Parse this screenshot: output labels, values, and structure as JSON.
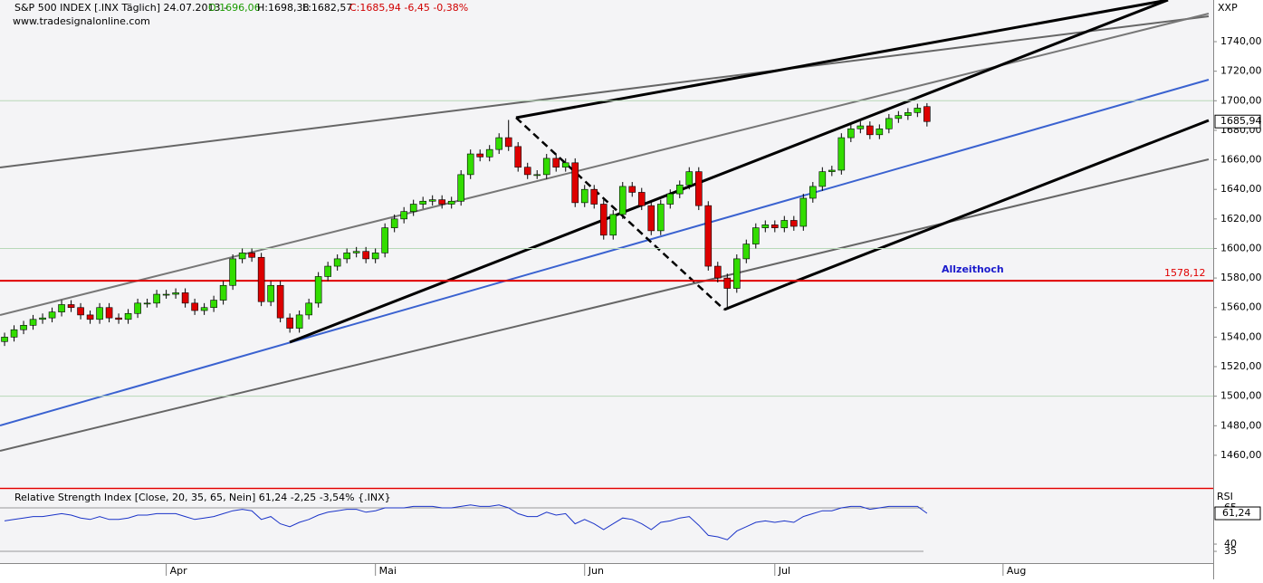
{
  "chart_data": {
    "type": "candlestick",
    "title": "S&P 500 INDEX [.INX  Täglich] 24.07.2013 -",
    "open_text": "O:1696,06",
    "high_text": "H:1698,38",
    "low_text": "L:1682,57",
    "close_text": "C:1685,94 -6,45 -0,38%",
    "website": "www.tradesignalonline.com",
    "symbol": "XXP",
    "up_color": "#33dd00",
    "down_color": "#dd0000",
    "open": [
      1537,
      1540,
      1545,
      1548,
      1552,
      1553,
      1557,
      1562,
      1560,
      1555,
      1552,
      1560,
      1553,
      1552,
      1556,
      1563,
      1563,
      1569,
      1569,
      1570,
      1563,
      1558,
      1560,
      1565,
      1575,
      1593,
      1597,
      1594,
      1564,
      1575,
      1553,
      1546,
      1555,
      1563,
      1581,
      1588,
      1593,
      1597,
      1598,
      1593,
      1597,
      1614,
      1620,
      1625,
      1630,
      1632,
      1633,
      1630,
      1632,
      1650,
      1664,
      1662,
      1667,
      1675,
      1669,
      1655,
      1650,
      1650,
      1661,
      1655,
      1658,
      1631,
      1640,
      1630,
      1609,
      1623,
      1642,
      1638,
      1629,
      1612,
      1630,
      1637,
      1643,
      1652,
      1629,
      1588,
      1580,
      1573,
      1593,
      1603,
      1614,
      1616,
      1614,
      1619,
      1615,
      1634,
      1642,
      1652,
      1653,
      1675,
      1681,
      1683,
      1677,
      1681,
      1688,
      1690,
      1692,
      1696.06
    ],
    "high": [
      1543,
      1548,
      1551,
      1555,
      1556,
      1560,
      1565,
      1565,
      1563,
      1558,
      1563,
      1563,
      1556,
      1559,
      1566,
      1566,
      1572,
      1572,
      1573,
      1573,
      1566,
      1563,
      1568,
      1578,
      1596,
      1600,
      1600,
      1597,
      1578,
      1578,
      1556,
      1558,
      1566,
      1584,
      1591,
      1596,
      1600,
      1601,
      1601,
      1600,
      1617,
      1623,
      1628,
      1633,
      1635,
      1636,
      1636,
      1635,
      1653,
      1667,
      1667,
      1670,
      1678,
      1687,
      1672,
      1658,
      1653,
      1664,
      1664,
      1661,
      1661,
      1643,
      1643,
      1633,
      1626,
      1645,
      1645,
      1641,
      1632,
      1633,
      1640,
      1646,
      1655,
      1655,
      1632,
      1591,
      1583,
      1596,
      1606,
      1617,
      1619,
      1619,
      1622,
      1622,
      1637,
      1645,
      1655,
      1656,
      1678,
      1684,
      1686,
      1686,
      1684,
      1691,
      1693,
      1695,
      1698,
      1698.38
    ],
    "low": [
      1534,
      1537,
      1542,
      1545,
      1549,
      1550,
      1554,
      1557,
      1552,
      1549,
      1549,
      1550,
      1549,
      1549,
      1553,
      1560,
      1560,
      1566,
      1566,
      1560,
      1555,
      1555,
      1557,
      1562,
      1572,
      1590,
      1591,
      1561,
      1561,
      1550,
      1543,
      1543,
      1552,
      1560,
      1578,
      1585,
      1590,
      1594,
      1590,
      1590,
      1594,
      1611,
      1617,
      1622,
      1627,
      1629,
      1627,
      1627,
      1629,
      1647,
      1659,
      1659,
      1664,
      1666,
      1652,
      1647,
      1647,
      1647,
      1652,
      1652,
      1628,
      1628,
      1627,
      1606,
      1606,
      1620,
      1635,
      1626,
      1609,
      1609,
      1627,
      1634,
      1640,
      1626,
      1585,
      1577,
      1560,
      1570,
      1590,
      1600,
      1611,
      1611,
      1611,
      1612,
      1612,
      1631,
      1639,
      1649,
      1650,
      1672,
      1678,
      1674,
      1674,
      1678,
      1685,
      1687,
      1689,
      1682.57
    ],
    "close": [
      1540,
      1545,
      1548,
      1552,
      1553,
      1557,
      1562,
      1560,
      1555,
      1552,
      1560,
      1553,
      1552,
      1556,
      1563,
      1563,
      1569,
      1569,
      1570,
      1563,
      1558,
      1560,
      1565,
      1575,
      1593,
      1597,
      1594,
      1564,
      1575,
      1553,
      1546,
      1555,
      1563,
      1581,
      1588,
      1593,
      1597,
      1598,
      1593,
      1597,
      1614,
      1620,
      1625,
      1630,
      1632,
      1633,
      1630,
      1632,
      1650,
      1664,
      1662,
      1667,
      1675,
      1669,
      1655,
      1650,
      1650,
      1661,
      1655,
      1658,
      1631,
      1640,
      1630,
      1609,
      1623,
      1642,
      1638,
      1629,
      1612,
      1630,
      1637,
      1643,
      1652,
      1629,
      1588,
      1580,
      1573,
      1593,
      1603,
      1614,
      1616,
      1614,
      1619,
      1615,
      1634,
      1642,
      1652,
      1653,
      1675,
      1681,
      1683,
      1677,
      1681,
      1688,
      1690,
      1692,
      1695,
      1685.94
    ],
    "xlim": [
      -0.48,
      127.1
    ],
    "xticks": [
      {
        "value": 17,
        "label": "Apr"
      },
      {
        "value": 39,
        "label": "Mai"
      },
      {
        "value": 61,
        "label": "Jun"
      },
      {
        "value": 81,
        "label": "Jul"
      },
      {
        "value": 105,
        "label": "Aug"
      }
    ],
    "ylim": [
      1438.5,
      1768.2
    ],
    "yticks": [
      {
        "value": 1460,
        "label": "1460,00"
      },
      {
        "value": 1480,
        "label": "1480,00"
      },
      {
        "value": 1500,
        "label": "1500,00"
      },
      {
        "value": 1520,
        "label": "1520,00"
      },
      {
        "value": 1540,
        "label": "1540,00"
      },
      {
        "value": 1560,
        "label": "1560,00"
      },
      {
        "value": 1580,
        "label": "1580,00"
      },
      {
        "value": 1600,
        "label": "1600,00"
      },
      {
        "value": 1620,
        "label": "1620,00"
      },
      {
        "value": 1640,
        "label": "1640,00"
      },
      {
        "value": 1660,
        "label": "1660,00"
      },
      {
        "value": 1680,
        "label": "1680,00"
      },
      {
        "value": 1700,
        "label": "1700,00"
      },
      {
        "value": 1720,
        "label": "1720,00"
      },
      {
        "value": 1740,
        "label": "1740,00"
      }
    ],
    "last_price": {
      "value": 1685.94,
      "label": "1685,94"
    },
    "annotation": {
      "text": "Allzeithoch",
      "value": 1578.12,
      "label": "1578,12",
      "color": "#e00000"
    },
    "rsi": {
      "title": "Relative Strength Index [Close, 20, 35, 65, Nein] 61,24 -2,25 -3,54% {.INX}",
      "label": "RSI",
      "color": "#1a33c8",
      "values": [
        56,
        57,
        58,
        59,
        59,
        60,
        61,
        60,
        58,
        57,
        59,
        57,
        57,
        58,
        60,
        60,
        61,
        61,
        61,
        59,
        57,
        58,
        59,
        61,
        63,
        64,
        63,
        57,
        59,
        54,
        52,
        55,
        57,
        60,
        62,
        63,
        64,
        64,
        62,
        63,
        65,
        65,
        65,
        66,
        66,
        66,
        65,
        65,
        66,
        67,
        66,
        66,
        67,
        65,
        61,
        59,
        59,
        62,
        60,
        61,
        54,
        57,
        54,
        50,
        54,
        58,
        57,
        54,
        50,
        55,
        56,
        58,
        59,
        53,
        46,
        45,
        43,
        49,
        52,
        55,
        56,
        55,
        56,
        55,
        59,
        61,
        63,
        63,
        65,
        66,
        66,
        64,
        65,
        66,
        66,
        66,
        66,
        61.24
      ],
      "ylim": [
        26.9,
        77.5
      ],
      "yticks": [
        35,
        40,
        65
      ],
      "last_label": {
        "value": 61.24,
        "label": "61,24"
      }
    }
  }
}
